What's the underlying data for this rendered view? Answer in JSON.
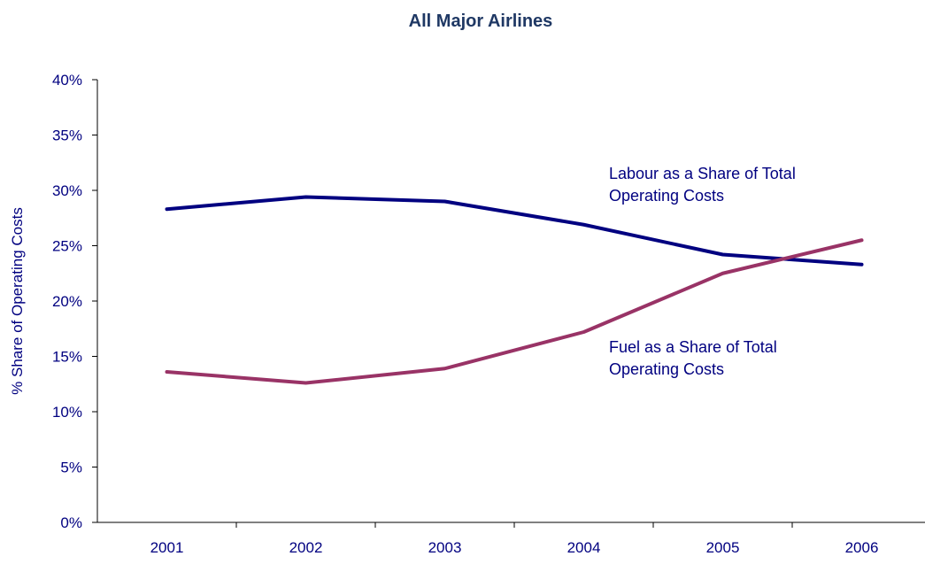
{
  "chart_data": {
    "type": "line",
    "title": "All Major Airlines",
    "ylabel": "% Share of Operating Costs",
    "xlabel": "",
    "categories": [
      "2001",
      "2002",
      "2003",
      "2004",
      "2005",
      "2006"
    ],
    "ylim": [
      0,
      40
    ],
    "yticks": [
      0,
      5,
      10,
      15,
      20,
      25,
      30,
      35,
      40
    ],
    "ytick_labels": [
      "0%",
      "5%",
      "10%",
      "15%",
      "20%",
      "25%",
      "30%",
      "35%",
      "40%"
    ],
    "grid": false,
    "legend": "none",
    "series": [
      {
        "key": "labour",
        "values": [
          28.3,
          29.4,
          29.0,
          26.9,
          24.2,
          23.3
        ],
        "color": "#000080",
        "label_lines": [
          "Labour as a Share of Total",
          "Operating Costs"
        ]
      },
      {
        "key": "fuel",
        "values": [
          13.6,
          12.6,
          13.9,
          17.2,
          22.5,
          25.5
        ],
        "color": "#993366",
        "label_lines": [
          "Fuel as a Share of Total",
          "Operating Costs"
        ]
      }
    ],
    "colors": {
      "title": "#1F3864",
      "axis": "#000000",
      "text": "#000080"
    }
  }
}
